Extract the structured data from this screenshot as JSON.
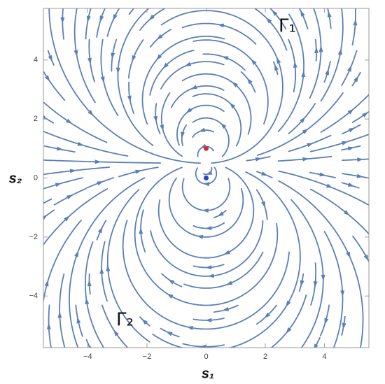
{
  "chart_data": {
    "type": "streamplot",
    "xlabel": "s₁",
    "ylabel": "s₂",
    "annotations": [
      "Γ₁",
      "Γ₂"
    ],
    "xlim": [
      -5.5,
      5.5
    ],
    "ylim": [
      -5.75,
      5.75
    ],
    "xticks": [
      {
        "value": -4,
        "label": "−4"
      },
      {
        "value": -2,
        "label": "−2"
      },
      0,
      2,
      4
    ],
    "yticks": [
      {
        "value": -4,
        "label": "−4"
      },
      {
        "value": -2,
        "label": "−2"
      },
      0,
      2,
      4
    ],
    "stream_color": "#5b7fb6",
    "points": [
      {
        "x": 0,
        "y": 1,
        "color": "#e0282e"
      },
      {
        "x": 0,
        "y": 0,
        "color": "#2a3fd0"
      }
    ]
  }
}
